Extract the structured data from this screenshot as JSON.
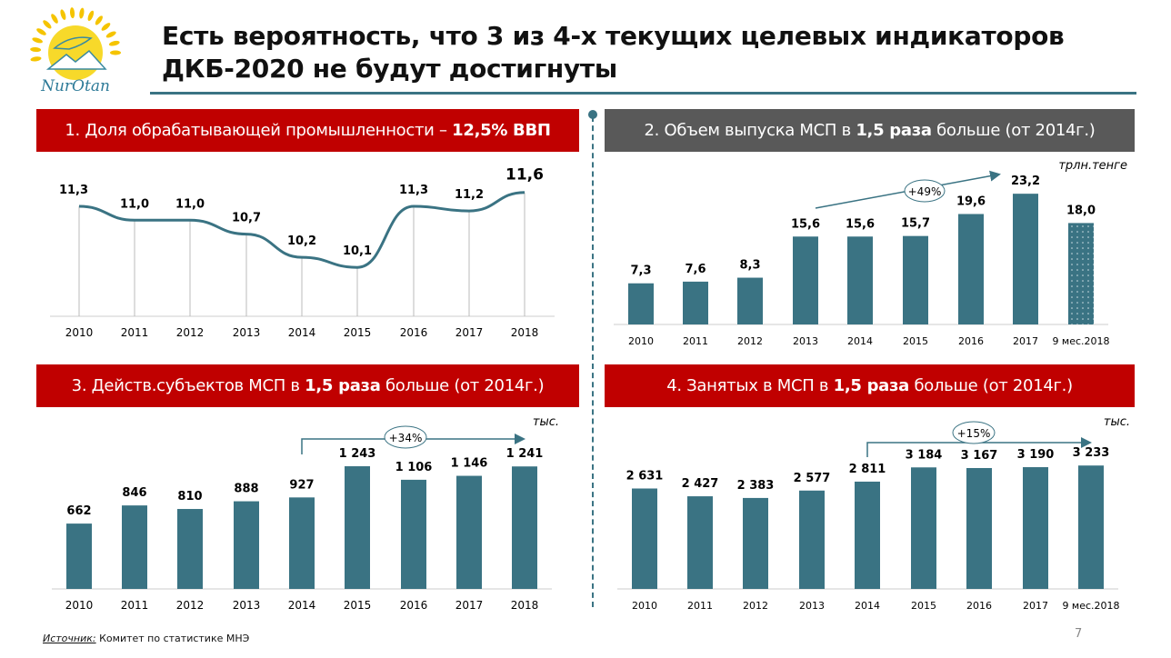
{
  "logo": {
    "text": "NurOtan"
  },
  "title": {
    "line1": "Есть вероятность, что 3 из 4-х текущих целевых индикаторов",
    "line2": "ДКБ-2020 не будут достигнуты"
  },
  "panels": [
    {
      "prefix": "1. Доля обрабатывающей промышленности – ",
      "bold": "12,5% ВВП",
      "suffix": ""
    },
    {
      "prefix": "2. Объем выпуска МСП в ",
      "bold": "1,5 раза",
      "suffix": " больше (от 2014г.)"
    },
    {
      "prefix": "3. Действ.субъектов МСП в ",
      "bold": "1,5 раза",
      "suffix": " больше (от 2014г.)"
    },
    {
      "prefix": "4. Занятых в МСП в ",
      "bold": "1,5 раза",
      "suffix": " больше (от 2014г.)"
    }
  ],
  "colors": {
    "bar": "#3a7383",
    "red": "#c00000",
    "gray": "#595959"
  },
  "chart_data": [
    {
      "type": "line",
      "categories": [
        "2010",
        "2011",
        "2012",
        "2013",
        "2014",
        "2015",
        "2016",
        "2017",
        "2018"
      ],
      "values": [
        11.3,
        11.0,
        11.0,
        10.7,
        10.2,
        10.1,
        11.3,
        11.2,
        11.6
      ],
      "labels": [
        "11,3",
        "11,0",
        "11,0",
        "10,7",
        "10,2",
        "10,1",
        "11,3",
        "11,2",
        "11,6"
      ],
      "unit": ""
    },
    {
      "type": "bar",
      "categories": [
        "2010",
        "2011",
        "2012",
        "2013",
        "2014",
        "2015",
        "2016",
        "2017",
        "9 мес.2018"
      ],
      "values": [
        7.3,
        7.6,
        8.3,
        15.6,
        15.6,
        15.7,
        19.6,
        23.2,
        18.0
      ],
      "labels": [
        "7,3",
        "7,6",
        "8,3",
        "15,6",
        "15,6",
        "15,7",
        "19,6",
        "23,2",
        "18,0"
      ],
      "unit": "трлн.тенге",
      "annotation": "+49%"
    },
    {
      "type": "bar",
      "categories": [
        "2010",
        "2011",
        "2012",
        "2013",
        "2014",
        "2015",
        "2016",
        "2017",
        "2018"
      ],
      "values": [
        662,
        846,
        810,
        888,
        927,
        1243,
        1106,
        1146,
        1241
      ],
      "labels": [
        "662",
        "846",
        "810",
        "888",
        "927",
        "1 243",
        "1 106",
        "1 146",
        "1 241"
      ],
      "unit": "тыс.",
      "annotation": "+34%"
    },
    {
      "type": "bar",
      "categories": [
        "2010",
        "2011",
        "2012",
        "2013",
        "2014",
        "2015",
        "2016",
        "2017",
        "9 мес.2018"
      ],
      "values": [
        2631,
        2427,
        2383,
        2577,
        2811,
        3184,
        3167,
        3190,
        3233
      ],
      "labels": [
        "2 631",
        "2 427",
        "2 383",
        "2 577",
        "2 811",
        "3 184",
        "3 167",
        "3 190",
        "3 233"
      ],
      "unit": "тыс.",
      "annotation": "+15%"
    }
  ],
  "footer": {
    "source_label": "Источник:",
    "source_text": " Комитет по статистике МНЭ",
    "page": "7"
  }
}
